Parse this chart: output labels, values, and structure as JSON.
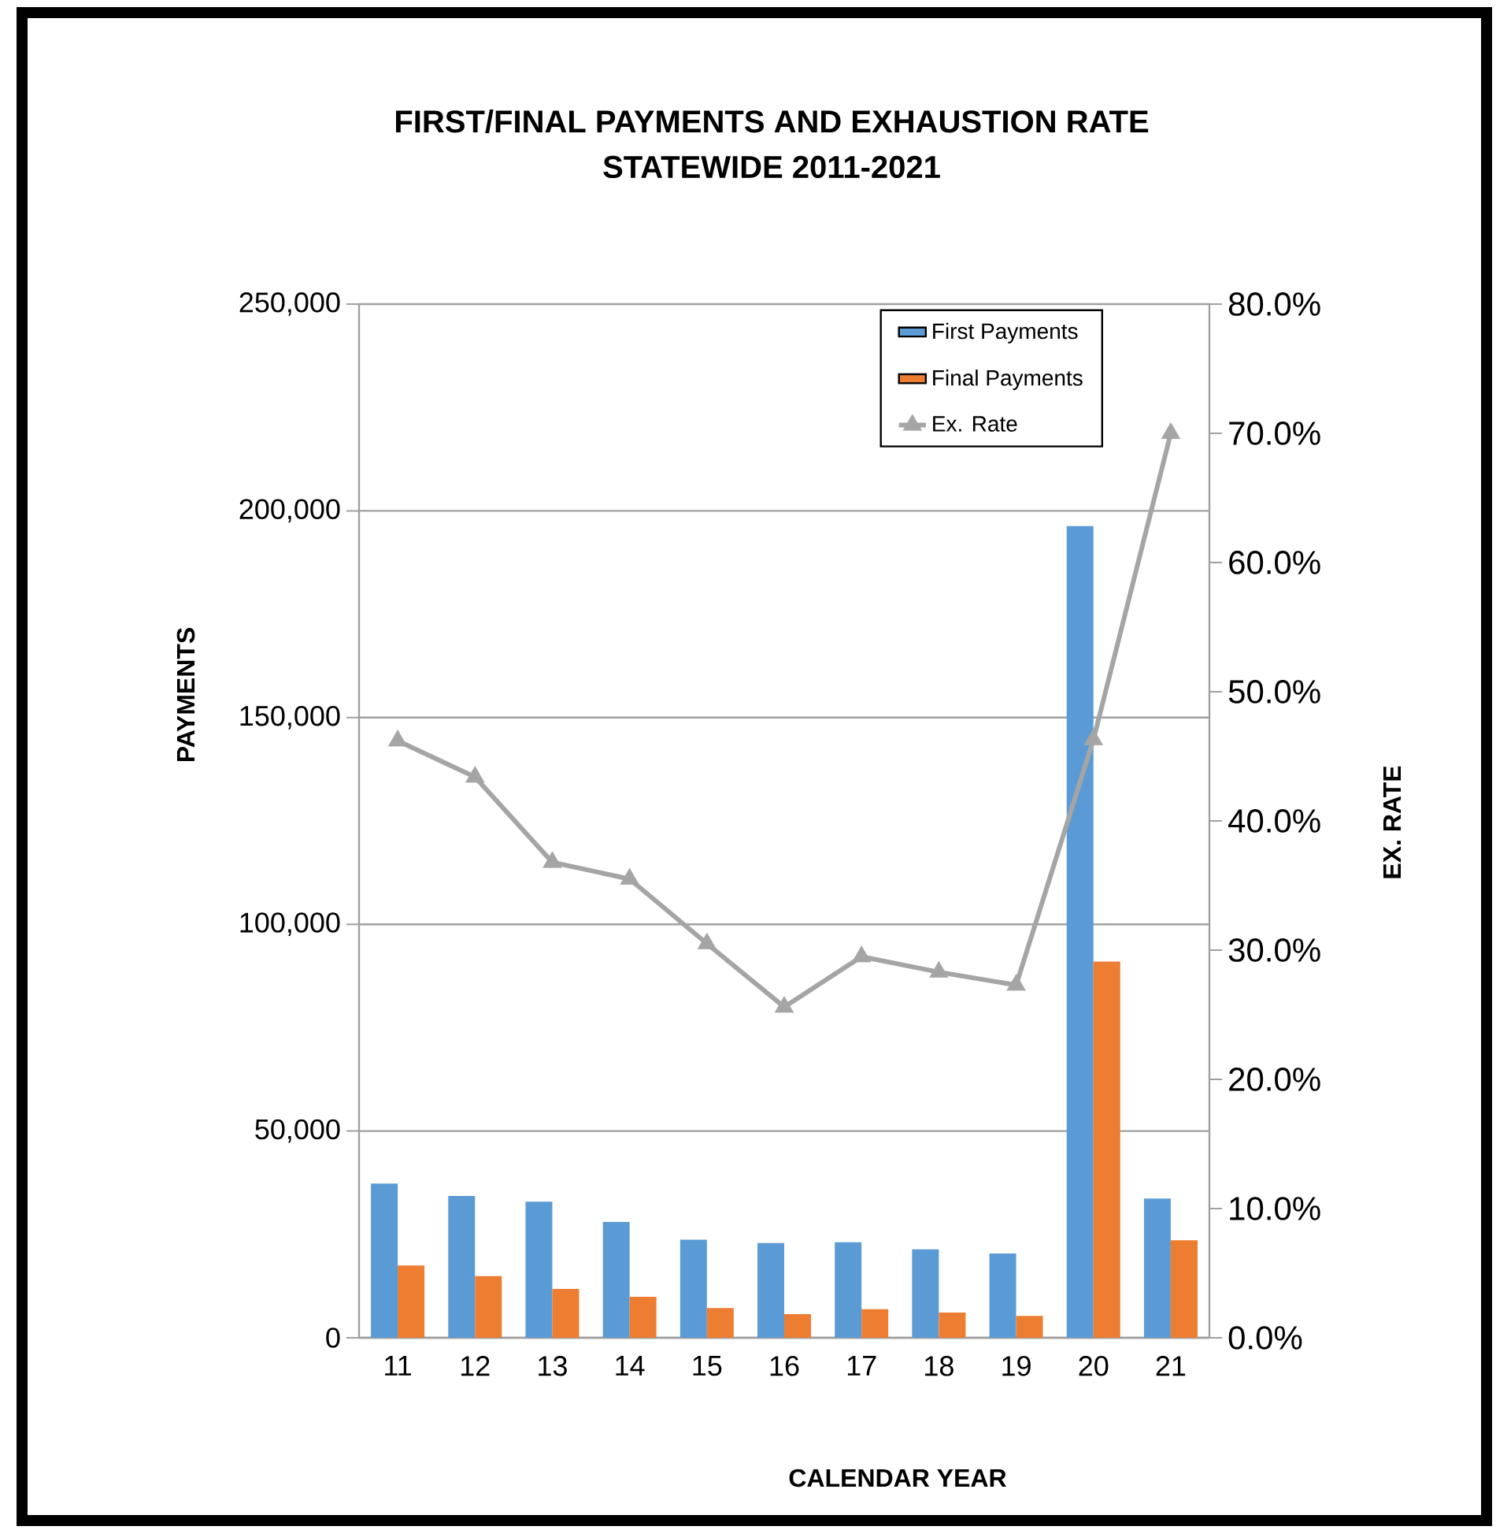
{
  "chart_data": {
    "type": "bar",
    "title": "FIRST/FINAL PAYMENTS AND EXHAUSTION RATE",
    "subtitle": "STATEWIDE 2011-2021",
    "xlabel": "CALENDAR YEAR",
    "ylabel": "PAYMENTS",
    "y2label": "EX. RATE",
    "categories": [
      "11",
      "12",
      "13",
      "14",
      "15",
      "16",
      "17",
      "18",
      "19",
      "20",
      "21"
    ],
    "series": [
      {
        "name": "First Payments",
        "color": "#5b9bd5",
        "values": [
          37300,
          34300,
          32900,
          28000,
          23700,
          22900,
          23100,
          21400,
          20400,
          196300,
          33700
        ]
      },
      {
        "name": "Final Payments",
        "color": "#ed7d31",
        "values": [
          17500,
          14900,
          11800,
          9900,
          7200,
          5700,
          6900,
          6100,
          5300,
          91000,
          23600
        ]
      },
      {
        "name": "Ex. Rate",
        "type": "line",
        "axis": "y2",
        "color": "#a5a5a5",
        "values": [
          46.2,
          43.4,
          36.8,
          35.5,
          30.5,
          25.6,
          29.5,
          28.3,
          27.3,
          46.3,
          70.0
        ]
      }
    ],
    "ylim": [
      0,
      250000
    ],
    "yticks": [
      0,
      {
        "value": 50000,
        "label": "50,000"
      },
      {
        "value": 100000,
        "label": "100,000"
      },
      {
        "value": 150000,
        "label": "150,000"
      },
      {
        "value": 200000,
        "label": "200,000"
      },
      {
        "value": 250000,
        "label": "250,000"
      }
    ],
    "y2lim": [
      0,
      80
    ],
    "y2ticks": [
      {
        "value": 0,
        "label": "0.0%"
      },
      {
        "value": 10,
        "label": "10.0%"
      },
      {
        "value": 20,
        "label": "20.0%"
      },
      {
        "value": 30,
        "label": "30.0%"
      },
      {
        "value": 40,
        "label": "40.0%"
      },
      {
        "value": 50,
        "label": "50.0%"
      },
      {
        "value": 60,
        "label": "60.0%"
      },
      {
        "value": 70,
        "label": "70.0%"
      },
      {
        "value": 80,
        "label": "80.0%"
      }
    ],
    "grid": "y",
    "legend": "top right",
    "marker": "triangle",
    "line_style": "solid"
  }
}
